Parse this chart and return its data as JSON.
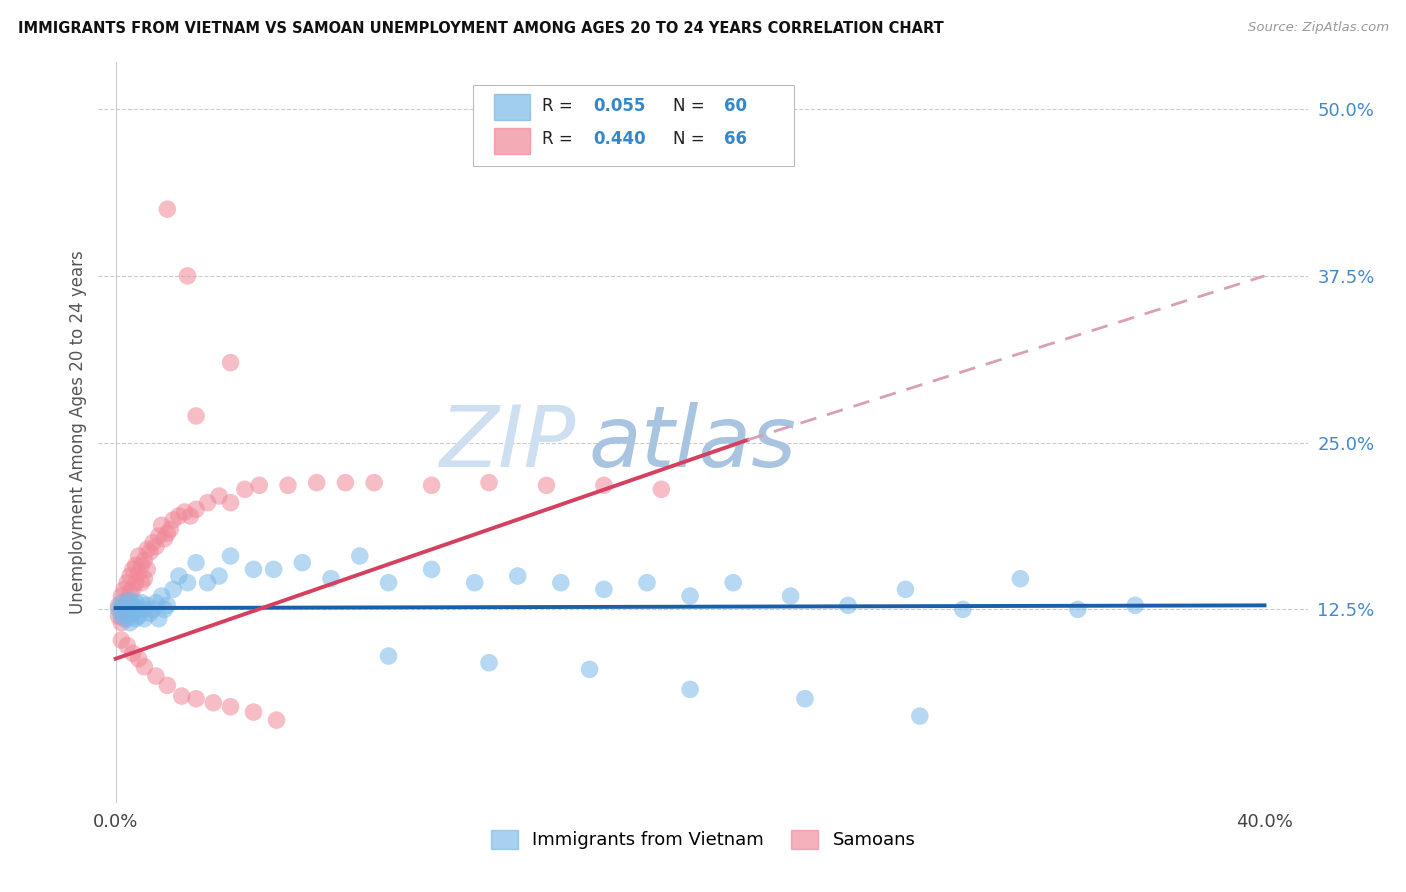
{
  "title": "IMMIGRANTS FROM VIETNAM VS SAMOAN UNEMPLOYMENT AMONG AGES 20 TO 24 YEARS CORRELATION CHART",
  "source": "Source: ZipAtlas.com",
  "ylabel": "Unemployment Among Ages 20 to 24 years",
  "color_blue": "#7ab8e8",
  "color_pink": "#f08898",
  "color_blue_line": "#1a5fa8",
  "color_pink_line": "#d44060",
  "color_pink_dash": "#d8a0b0",
  "watermark_zip": "#c8d8f0",
  "watermark_atlas": "#a8b8d0",
  "grid_color": "#cccccc",
  "xlim": [
    -0.006,
    0.415
  ],
  "ylim": [
    -0.02,
    0.535
  ],
  "ytick_vals": [
    0.125,
    0.25,
    0.375,
    0.5
  ],
  "ytick_labels": [
    "12.5%",
    "25.0%",
    "37.5%",
    "50.0%"
  ],
  "xtick_vals": [
    0.0,
    0.1,
    0.2,
    0.3,
    0.4
  ],
  "xtick_labels": [
    "0.0%",
    "",
    "",
    "",
    "40.0%"
  ],
  "r_blue": 0.055,
  "n_blue": 60,
  "r_pink": 0.44,
  "n_pink": 66,
  "legend_label_blue": "Immigrants from Vietnam",
  "legend_label_pink": "Samoans",
  "blue_x": [
    0.001,
    0.002,
    0.002,
    0.003,
    0.003,
    0.004,
    0.004,
    0.005,
    0.005,
    0.006,
    0.006,
    0.007,
    0.007,
    0.008,
    0.008,
    0.009,
    0.01,
    0.01,
    0.011,
    0.012,
    0.013,
    0.014,
    0.015,
    0.016,
    0.017,
    0.018,
    0.02,
    0.022,
    0.025,
    0.028,
    0.032,
    0.036,
    0.04,
    0.048,
    0.055,
    0.065,
    0.075,
    0.085,
    0.095,
    0.11,
    0.125,
    0.14,
    0.155,
    0.17,
    0.185,
    0.2,
    0.215,
    0.235,
    0.255,
    0.275,
    0.295,
    0.315,
    0.335,
    0.355,
    0.095,
    0.13,
    0.165,
    0.2,
    0.24,
    0.28
  ],
  "blue_y": [
    0.125,
    0.13,
    0.12,
    0.128,
    0.122,
    0.125,
    0.118,
    0.132,
    0.115,
    0.128,
    0.122,
    0.13,
    0.118,
    0.125,
    0.12,
    0.13,
    0.125,
    0.118,
    0.128,
    0.122,
    0.125,
    0.13,
    0.118,
    0.135,
    0.125,
    0.128,
    0.14,
    0.15,
    0.145,
    0.16,
    0.145,
    0.15,
    0.165,
    0.155,
    0.155,
    0.16,
    0.148,
    0.165,
    0.145,
    0.155,
    0.145,
    0.15,
    0.145,
    0.14,
    0.145,
    0.135,
    0.145,
    0.135,
    0.128,
    0.14,
    0.125,
    0.148,
    0.125,
    0.128,
    0.09,
    0.085,
    0.08,
    0.065,
    0.058,
    0.045
  ],
  "pink_x": [
    0.001,
    0.001,
    0.002,
    0.002,
    0.002,
    0.003,
    0.003,
    0.003,
    0.004,
    0.004,
    0.004,
    0.005,
    0.005,
    0.005,
    0.006,
    0.006,
    0.007,
    0.007,
    0.008,
    0.008,
    0.009,
    0.009,
    0.01,
    0.01,
    0.011,
    0.011,
    0.012,
    0.013,
    0.014,
    0.015,
    0.016,
    0.017,
    0.018,
    0.019,
    0.02,
    0.022,
    0.024,
    0.026,
    0.028,
    0.032,
    0.036,
    0.04,
    0.045,
    0.05,
    0.06,
    0.07,
    0.08,
    0.09,
    0.11,
    0.13,
    0.15,
    0.17,
    0.19,
    0.002,
    0.004,
    0.006,
    0.008,
    0.01,
    0.014,
    0.018,
    0.023,
    0.028,
    0.034,
    0.04,
    0.048,
    0.056
  ],
  "pink_y": [
    0.128,
    0.12,
    0.135,
    0.125,
    0.115,
    0.14,
    0.128,
    0.118,
    0.132,
    0.145,
    0.122,
    0.15,
    0.138,
    0.128,
    0.155,
    0.14,
    0.145,
    0.158,
    0.152,
    0.165,
    0.158,
    0.145,
    0.162,
    0.148,
    0.17,
    0.155,
    0.168,
    0.175,
    0.172,
    0.18,
    0.188,
    0.178,
    0.182,
    0.185,
    0.192,
    0.195,
    0.198,
    0.195,
    0.2,
    0.205,
    0.21,
    0.205,
    0.215,
    0.218,
    0.218,
    0.22,
    0.22,
    0.22,
    0.218,
    0.22,
    0.218,
    0.218,
    0.215,
    0.102,
    0.098,
    0.092,
    0.088,
    0.082,
    0.075,
    0.068,
    0.06,
    0.058,
    0.055,
    0.052,
    0.048,
    0.042
  ]
}
